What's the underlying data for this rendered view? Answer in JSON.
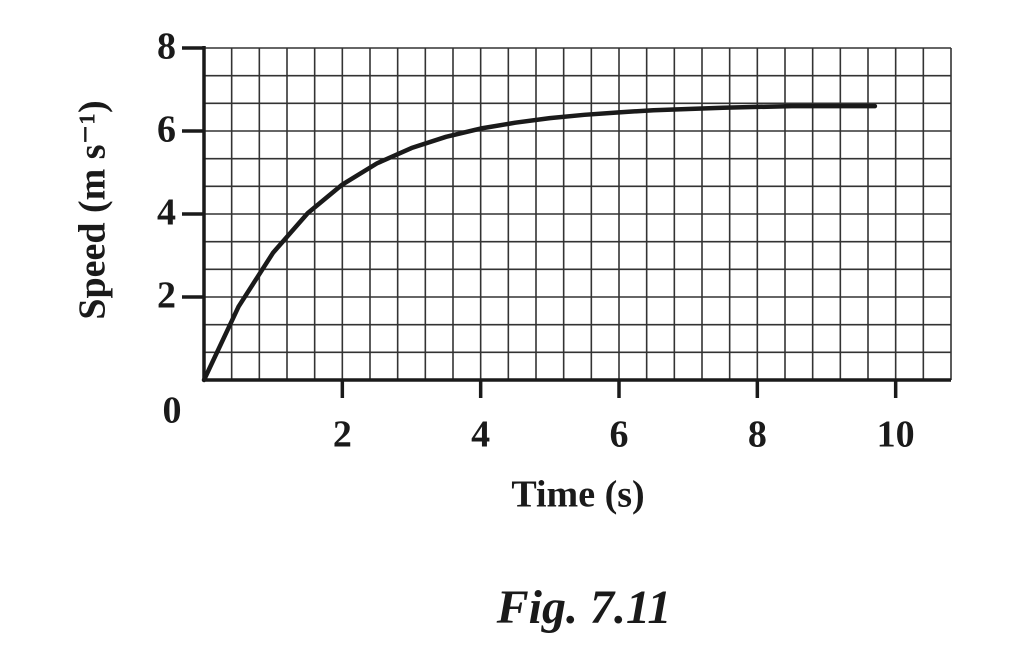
{
  "chart_data": {
    "type": "line",
    "x_label": "Time (s)",
    "y_label": "Speed (m s⁻¹)",
    "caption": "Fig. 7.11",
    "x": [
      0,
      0.5,
      1,
      1.5,
      2,
      2.5,
      3,
      3.5,
      4,
      4.5,
      5,
      5.5,
      6,
      6.5,
      7,
      7.5,
      8,
      8.5,
      9,
      9.7
    ],
    "series": [
      {
        "name": "speed",
        "color": "#1a1a1a",
        "values": [
          0,
          1.77,
          3.07,
          4.02,
          4.71,
          5.22,
          5.59,
          5.86,
          6.06,
          6.2,
          6.31,
          6.39,
          6.45,
          6.5,
          6.53,
          6.56,
          6.58,
          6.6,
          6.6,
          6.6
        ]
      }
    ],
    "xlim": [
      0,
      10.8
    ],
    "ylim": [
      0,
      8
    ],
    "xticks": [
      0,
      2,
      4,
      6,
      8,
      10
    ],
    "yticks": [
      2,
      4,
      6,
      8
    ],
    "grid": true,
    "x_grid_divisions": 5,
    "y_grid_divisions": 3
  }
}
